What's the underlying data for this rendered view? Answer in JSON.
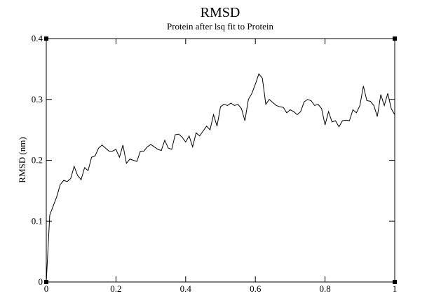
{
  "chart_data": {
    "type": "line",
    "title": "RMSD",
    "subtitle": "Protein after lsq fit to Protein",
    "y_label": "RMSD (nm)",
    "x": [
      0,
      0.01,
      0.02,
      0.03,
      0.04,
      0.05,
      0.06,
      0.07,
      0.08,
      0.09,
      0.1,
      0.11,
      0.12,
      0.13,
      0.14,
      0.15,
      0.16,
      0.17,
      0.18,
      0.19,
      0.2,
      0.21,
      0.22,
      0.23,
      0.24,
      0.25,
      0.26,
      0.27,
      0.28,
      0.29,
      0.3,
      0.31,
      0.32,
      0.33,
      0.34,
      0.35,
      0.36,
      0.37,
      0.38,
      0.39,
      0.4,
      0.41,
      0.42,
      0.43,
      0.44,
      0.45,
      0.46,
      0.47,
      0.48,
      0.49,
      0.5,
      0.51,
      0.52,
      0.53,
      0.54,
      0.55,
      0.56,
      0.57,
      0.58,
      0.59,
      0.6,
      0.61,
      0.62,
      0.63,
      0.64,
      0.65,
      0.66,
      0.67,
      0.68,
      0.69,
      0.7,
      0.71,
      0.72,
      0.73,
      0.74,
      0.75,
      0.76,
      0.77,
      0.78,
      0.79,
      0.8,
      0.81,
      0.82,
      0.83,
      0.84,
      0.85,
      0.86,
      0.87,
      0.88,
      0.89,
      0.9,
      0.91,
      0.92,
      0.93,
      0.94,
      0.95,
      0.96,
      0.97,
      0.98,
      0.99,
      1
    ],
    "values": [
      0,
      0.11,
      0.125,
      0.14,
      0.16,
      0.167,
      0.165,
      0.17,
      0.19,
      0.175,
      0.168,
      0.188,
      0.183,
      0.205,
      0.207,
      0.22,
      0.225,
      0.22,
      0.215,
      0.215,
      0.218,
      0.205,
      0.225,
      0.195,
      0.202,
      0.2,
      0.198,
      0.215,
      0.215,
      0.222,
      0.226,
      0.222,
      0.218,
      0.216,
      0.233,
      0.22,
      0.218,
      0.242,
      0.243,
      0.238,
      0.23,
      0.24,
      0.222,
      0.245,
      0.24,
      0.248,
      0.256,
      0.25,
      0.275,
      0.256,
      0.288,
      0.292,
      0.29,
      0.294,
      0.29,
      0.292,
      0.285,
      0.265,
      0.3,
      0.31,
      0.325,
      0.342,
      0.335,
      0.292,
      0.3,
      0.295,
      0.29,
      0.288,
      0.287,
      0.278,
      0.283,
      0.28,
      0.275,
      0.28,
      0.296,
      0.3,
      0.298,
      0.29,
      0.292,
      0.285,
      0.258,
      0.28,
      0.263,
      0.265,
      0.255,
      0.265,
      0.266,
      0.265,
      0.283,
      0.278,
      0.29,
      0.322,
      0.298,
      0.297,
      0.29,
      0.272,
      0.308,
      0.29,
      0.31,
      0.285,
      0.275
    ],
    "color": "#000000",
    "xlim": [
      0,
      1
    ],
    "xticks": [
      0,
      0.2,
      0.4,
      0.6,
      0.8,
      1
    ],
    "ylim": [
      0,
      0.4
    ],
    "yticks": [
      0,
      0.1,
      0.2,
      0.3,
      0.4
    ]
  }
}
